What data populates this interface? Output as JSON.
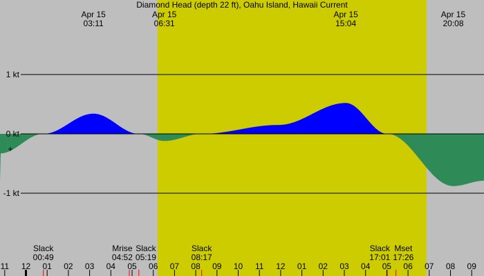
{
  "chart_data": {
    "type": "area",
    "title": "Diamond Head (depth 22 ft), Oahu Island, Hawaii Current",
    "ylabel": "",
    "xlabel": "",
    "y_unit": "kt",
    "ylim": [
      -2.2,
      2.26
    ],
    "y_gridlines": [
      {
        "value": 1,
        "label": "1 kt"
      },
      {
        "value": 0,
        "label": "0 kt"
      },
      {
        "value": -1,
        "label": "-1 kt"
      }
    ],
    "x_range_hours": [
      -1.22,
      21.58
    ],
    "hour_ticks": [
      "11",
      "12",
      "01",
      "02",
      "03",
      "04",
      "05",
      "06",
      "07",
      "08",
      "09",
      "10",
      "11",
      "12",
      "01",
      "02",
      "03",
      "04",
      "05",
      "06",
      "07",
      "08",
      "09"
    ],
    "hour_tick_start": -1,
    "daylight_hours": [
      6.2,
      18.87
    ],
    "colors": {
      "background": "#bebebe",
      "daylight": "#cccc00",
      "flood": "#0000ff",
      "ebb": "#2e8b57",
      "event_tick": "#ff0000"
    },
    "series": [
      {
        "points": [
          [
            -1.22,
            -0.33
          ],
          [
            0.82,
            0
          ],
          [
            3.18,
            0.34
          ],
          [
            5.32,
            0
          ],
          [
            6.52,
            -0.12
          ],
          [
            8.28,
            0
          ],
          [
            11.9,
            0.15
          ],
          [
            15.07,
            0.52
          ],
          [
            17.02,
            0
          ],
          [
            20.13,
            -0.88
          ],
          [
            21.58,
            -0.79
          ]
        ]
      }
    ],
    "extrema_labels": [
      {
        "date": "Apr 15",
        "time": "03:11",
        "hour": 3.18
      },
      {
        "date": "Apr 15",
        "time": "06:31",
        "hour": 6.52
      },
      {
        "date": "Apr 15",
        "time": "15:04",
        "hour": 15.07
      },
      {
        "date": "Apr 15",
        "time": "20:08",
        "hour": 20.13
      }
    ],
    "events": [
      {
        "label": "Slack",
        "time": "00:49",
        "hour": 0.82
      },
      {
        "label": "Mrise",
        "time": "04:52",
        "hour": 4.87
      },
      {
        "label": "Slack",
        "time": "05:19",
        "hour": 5.32
      },
      {
        "label": "Slack",
        "time": "08:17",
        "hour": 8.28
      },
      {
        "label": "Slack",
        "time": "17:01",
        "hour": 17.02
      },
      {
        "label": "Mset",
        "time": "17:26",
        "hour": 17.43
      }
    ],
    "current_marker": "+"
  }
}
